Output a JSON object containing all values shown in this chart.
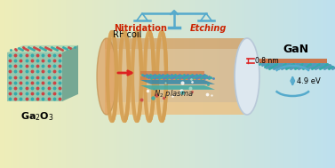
{
  "bg_left_color": "#eeedb8",
  "bg_right_color": "#bde0ee",
  "ga2o3_label": "Ga$_2$O$_3$",
  "gan_label": "GaN",
  "rf_label": "RF coil",
  "n2_label": "N$_2$ plasma",
  "nitridation_label": "Nitridation",
  "etching_label": "Etching",
  "bandgap_label": "4.9 eV",
  "thickness_label": "0.8 nm",
  "crystal_teal": "#3aacaa",
  "crystal_red": "#cc3333",
  "crystal_orange": "#dd7722",
  "crystal_blue": "#4477bb",
  "scale_color": "#55aacc",
  "tube_orange": "#e0a060",
  "tube_highlight": "#f5d090",
  "tube_shadow": "#c88840",
  "tube_rim": "#d0d8e8",
  "gan_top": "#4499bb",
  "gan_side": "#cc6633",
  "text_dark": "#cc2200",
  "arrow_red": "#dd2222",
  "dot_teal": "#33aaaa",
  "dot_red": "#cc4444",
  "dot_blue": "#5588bb"
}
